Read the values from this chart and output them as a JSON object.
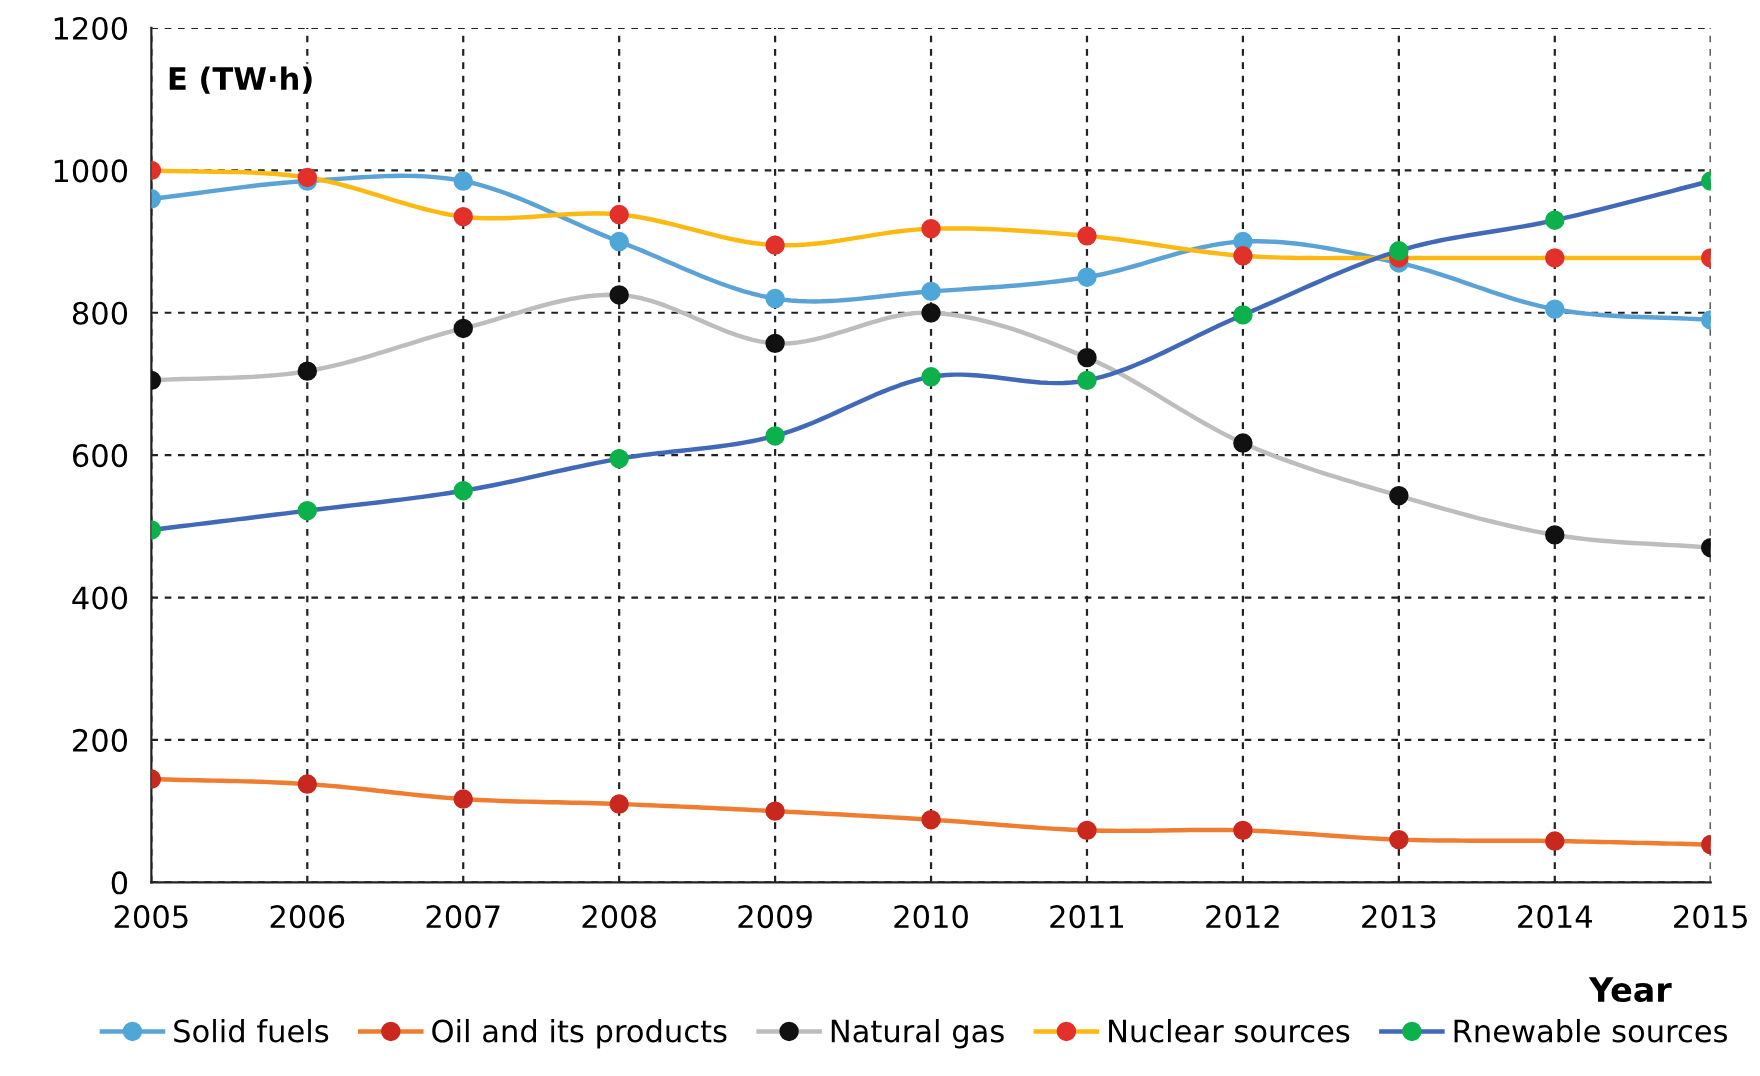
{
  "chart_data": {
    "type": "line",
    "xlabel": "Year",
    "ylabel": "E (TW·h)",
    "x": [
      2005,
      2006,
      2007,
      2008,
      2009,
      2010,
      2011,
      2012,
      2013,
      2014,
      2015
    ],
    "xlim": [
      2005,
      2015
    ],
    "xticks": [
      2005,
      2006,
      2007,
      2008,
      2009,
      2010,
      2011,
      2012,
      2013,
      2014,
      2015
    ],
    "ylim": [
      0,
      1200
    ],
    "yticks": [
      0,
      200,
      400,
      600,
      800,
      1000,
      1200
    ],
    "grid": true,
    "legend": "bottom",
    "marker": "circle",
    "line_style": "solid",
    "series": [
      {
        "name": "Solid fuels",
        "color": "#5ba3d6",
        "colors": [
          "#4fa6d8",
          "#4fa6d8",
          "#4fa6d8",
          "#4fa6d8",
          "#4fa6d8",
          "#4fa6d8",
          "#4fa6d8",
          "#4fa6d8",
          "#4fa6d8",
          "#4fa6d8",
          "#4fa6d8"
        ],
        "values": [
          960,
          985,
          985,
          900,
          820,
          830,
          850,
          900,
          870,
          805,
          790
        ]
      },
      {
        "name": "Oil and its products",
        "color": "#ee7d31",
        "colors": [
          "#c8281e",
          "#c8281e",
          "#c8281e",
          "#c8281e",
          "#c8281e",
          "#c8281e",
          "#c8281e",
          "#c8281e",
          "#c8281e",
          "#c8281e",
          "#c8281e"
        ],
        "values": [
          145,
          138,
          117,
          110,
          100,
          88,
          73,
          73,
          60,
          58,
          53
        ]
      },
      {
        "name": "Natural gas",
        "color": "#bdbdbd",
        "colors": [
          "#111111",
          "#111111",
          "#111111",
          "#111111",
          "#111111",
          "#111111",
          "#111111",
          "#111111",
          "#111111",
          "#111111",
          "#111111"
        ],
        "values": [
          705,
          718,
          778,
          825,
          757,
          800,
          737,
          617,
          543,
          488,
          470
        ]
      },
      {
        "name": "Nuclear sources",
        "color": "#fdb913",
        "colors": [
          "#e2312a",
          "#e2312a",
          "#e2312a",
          "#e2312a",
          "#e2312a",
          "#e2312a",
          "#e2312a",
          "#e2312a",
          "#e2312a",
          "#e2312a",
          "#e2312a"
        ],
        "values": [
          1000,
          990,
          935,
          938,
          895,
          918,
          908,
          880,
          877,
          877,
          877
        ]
      },
      {
        "name": "Rnewable sources",
        "color": "#4169b8",
        "colors": [
          "#0db14b",
          "#0db14b",
          "#0db14b",
          "#0db14b",
          "#0db14b",
          "#0db14b",
          "#0db14b",
          "#0db14b",
          "#0db14b",
          "#0db14b",
          "#0db14b"
        ],
        "values": [
          495,
          522,
          550,
          595,
          627,
          710,
          705,
          797,
          887,
          930,
          985
        ]
      }
    ]
  }
}
